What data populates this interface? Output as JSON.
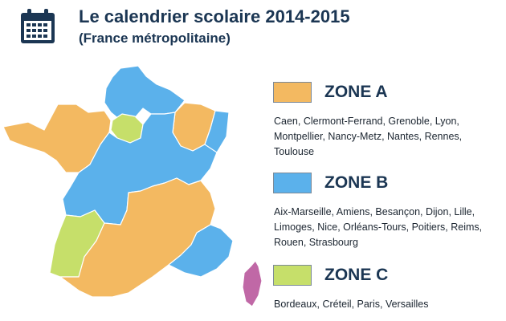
{
  "header": {
    "title": "Le calendrier scolaire 2014-2015",
    "subtitle": "(France métropolitaine)",
    "icon": "calendar-icon"
  },
  "colors": {
    "zone_a": "#f3b961",
    "zone_b": "#5bb1eb",
    "zone_c": "#c6df6a",
    "corsica": "#c068a6",
    "border": "#ffffff",
    "text": "#1b3653"
  },
  "zones": [
    {
      "label": "ZONE A",
      "color": "#f3b961",
      "cities": "Caen, Clermont-Ferrand, Grenoble, Lyon, Montpellier, Nancy-Metz, Nantes, Rennes, Toulouse"
    },
    {
      "label": "ZONE B",
      "color": "#5bb1eb",
      "cities": "Aix-Marseille, Amiens, Besançon, Dijon, Lille, Limoges, Nice, Orléans-Tours, Poitiers, Reims, Rouen, Strasbourg"
    },
    {
      "label": "ZONE C",
      "color": "#c6df6a",
      "cities": "Bordeaux, Créteil, Paris, Versailles"
    }
  ]
}
